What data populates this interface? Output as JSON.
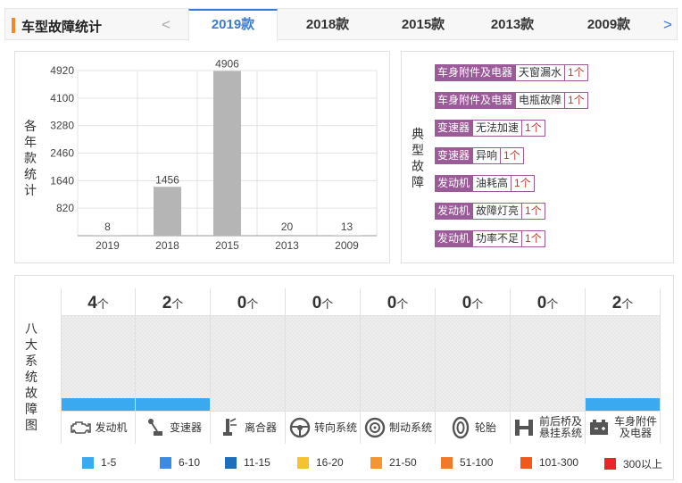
{
  "header": {
    "title": "车型故障统计",
    "prev_label": "<",
    "next_label": ">",
    "tabs": [
      {
        "label": "2019款",
        "active": true
      },
      {
        "label": "2018款",
        "active": false
      },
      {
        "label": "2015款",
        "active": false
      },
      {
        "label": "2013款",
        "active": false
      },
      {
        "label": "2009款",
        "active": false
      }
    ]
  },
  "chart_panel": {
    "ylabel": "各年款统计"
  },
  "chart_data": {
    "type": "bar",
    "categories": [
      "2019",
      "2018",
      "2015",
      "2013",
      "2009"
    ],
    "values": [
      8,
      1456,
      4906,
      20,
      13
    ],
    "yticks": [
      820,
      1640,
      2460,
      3280,
      4100,
      4920
    ],
    "ylim": [
      0,
      4920
    ],
    "title": "",
    "xlabel": "",
    "ylabel": "各年款统计",
    "grid": true,
    "bar_color": "#b5b5b5"
  },
  "faults_panel": {
    "label": "典型故障",
    "items": [
      {
        "category": "车身附件及电器",
        "description": "天窗漏水",
        "count": "1个"
      },
      {
        "category": "车身附件及电器",
        "description": "电瓶故障",
        "count": "1个"
      },
      {
        "category": "变速器",
        "description": "无法加速",
        "count": "1个"
      },
      {
        "category": "变速器",
        "description": "异响",
        "count": "1个"
      },
      {
        "category": "发动机",
        "description": "油耗高",
        "count": "1个"
      },
      {
        "category": "发动机",
        "description": "故障灯亮",
        "count": "1个"
      },
      {
        "category": "发动机",
        "description": "功率不足",
        "count": "1个"
      }
    ]
  },
  "systems_panel": {
    "label": "八大系统故障图",
    "unit": "个",
    "systems": [
      {
        "name": "发动机",
        "count": "4",
        "level": 0.1,
        "icon": "engine-icon"
      },
      {
        "name": "变速器",
        "count": "2",
        "level": 0.1,
        "icon": "gear-shift-icon"
      },
      {
        "name": "离合器",
        "count": "0",
        "level": 0,
        "icon": "clutch-pedal-icon"
      },
      {
        "name": "转向系统",
        "count": "0",
        "level": 0,
        "icon": "steering-wheel-icon"
      },
      {
        "name": "制动系统",
        "count": "0",
        "level": 0,
        "icon": "brake-disc-icon"
      },
      {
        "name": "轮胎",
        "count": "0",
        "level": 0,
        "icon": "tire-icon"
      },
      {
        "name": "前后桥及悬挂系统",
        "count": "0",
        "level": 0,
        "icon": "axle-suspension-icon"
      },
      {
        "name": "车身附件及电器",
        "count": "2",
        "level": 0.1,
        "icon": "battery-icon"
      }
    ],
    "legend": [
      {
        "label": "1-5",
        "color": "#3aa9f0"
      },
      {
        "label": "6-10",
        "color": "#3c8be0"
      },
      {
        "label": "11-15",
        "color": "#1c6fb8"
      },
      {
        "label": "16-20",
        "color": "#f5c232"
      },
      {
        "label": "21-50",
        "color": "#f29634"
      },
      {
        "label": "51-100",
        "color": "#f07a2a"
      },
      {
        "label": "101-300",
        "color": "#ee5a1e"
      },
      {
        "label": "300以上",
        "color": "#e8262a"
      }
    ]
  }
}
